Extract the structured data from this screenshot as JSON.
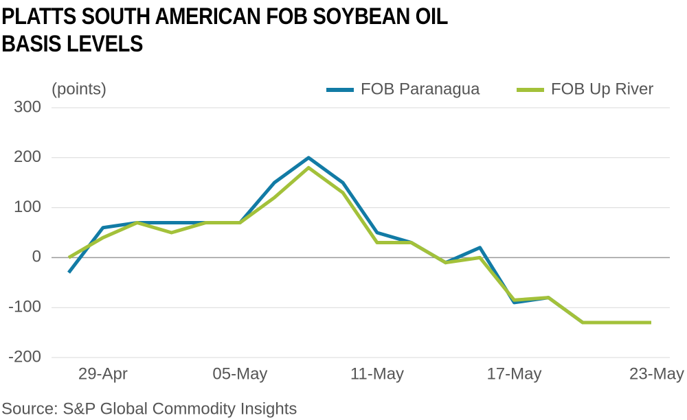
{
  "chart_data": {
    "type": "line",
    "title": "PLATTS SOUTH AMERICAN FOB SOYBEAN OIL BASIS LEVELS",
    "y_label": "(points)",
    "source": "Source: S&P Global Commodity Insights",
    "categories": [
      null,
      "29-Apr",
      null,
      null,
      null,
      "05-May",
      null,
      null,
      null,
      "11-May",
      null,
      null,
      null,
      "17-May",
      null,
      null,
      null,
      "23-May"
    ],
    "series": [
      {
        "name": "FOB Paranagua",
        "color": "#127ba5",
        "values": [
          -30,
          60,
          70,
          70,
          70,
          70,
          150,
          200,
          150,
          50,
          30,
          -10,
          20,
          -90,
          -80,
          -130,
          -130,
          -130
        ]
      },
      {
        "name": "FOB Up River",
        "color": "#a3c13a",
        "values": [
          0,
          40,
          70,
          50,
          70,
          70,
          120,
          180,
          130,
          30,
          30,
          -10,
          0,
          -85,
          -80,
          -130,
          -130,
          -130
        ]
      }
    ],
    "ylim": [
      -200,
      300
    ],
    "yticks": [
      -200,
      -100,
      0,
      100,
      200,
      300
    ],
    "grid": true,
    "legend": "top-right"
  }
}
